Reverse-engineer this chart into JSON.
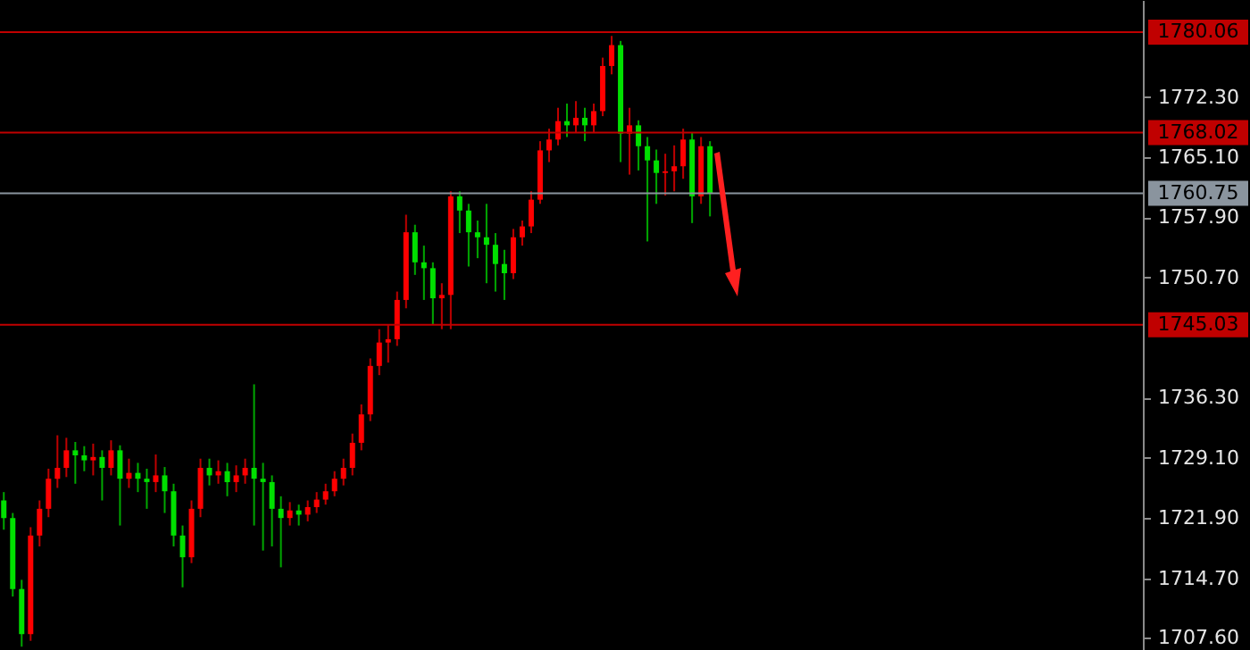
{
  "chart_data": {
    "type": "candlestick",
    "categories": [
      null,
      null,
      null,
      null,
      null,
      null,
      null,
      null,
      null,
      null,
      null,
      null,
      null,
      null,
      null,
      null,
      null,
      null,
      null,
      null,
      null,
      null,
      null,
      null,
      null,
      null,
      null,
      null,
      null,
      null,
      null,
      null,
      null,
      null,
      null,
      null,
      null,
      null,
      null,
      null,
      null,
      null,
      null,
      null,
      null,
      null,
      null,
      null,
      null,
      null,
      null,
      null,
      null,
      null,
      null,
      null,
      null,
      null,
      null,
      null,
      null,
      null,
      null,
      null,
      null,
      null,
      null,
      null,
      null,
      null,
      null,
      null,
      null,
      null,
      null,
      null,
      null,
      null,
      null,
      null,
      null,
      null,
      null,
      null,
      null,
      null,
      null,
      null,
      null,
      null,
      null,
      null,
      null,
      null,
      null,
      null,
      null,
      null,
      null,
      null,
      null,
      null,
      null,
      null,
      null,
      null,
      null,
      null,
      null,
      null,
      null,
      null,
      null,
      null,
      null,
      null,
      null,
      null,
      null,
      null,
      null,
      null,
      null,
      null,
      null,
      null,
      null,
      null
    ],
    "ohlc": [
      [
        1724.0,
        1725.0,
        1720.5,
        1721.9
      ],
      [
        1721.9,
        1722.5,
        1712.5,
        1713.4
      ],
      [
        1713.4,
        1714.5,
        1706.5,
        1708.0
      ],
      [
        1708.0,
        1720.8,
        1707.2,
        1719.8
      ],
      [
        1719.8,
        1724.0,
        1718.5,
        1723.0
      ],
      [
        1723.0,
        1727.8,
        1722.0,
        1726.6
      ],
      [
        1726.6,
        1731.8,
        1725.5,
        1727.9
      ],
      [
        1727.9,
        1731.5,
        1726.8,
        1730.0
      ],
      [
        1730.0,
        1731.0,
        1726.0,
        1729.4
      ],
      [
        1729.4,
        1730.5,
        1727.5,
        1728.8
      ],
      [
        1728.8,
        1730.8,
        1727.0,
        1729.2
      ],
      [
        1729.2,
        1730.0,
        1724.0,
        1727.9
      ],
      [
        1727.9,
        1731.2,
        1727.0,
        1730.0
      ],
      [
        1730.0,
        1730.6,
        1721.0,
        1726.6
      ],
      [
        1726.6,
        1729.0,
        1725.5,
        1727.3
      ],
      [
        1727.3,
        1728.5,
        1725.0,
        1726.6
      ],
      [
        1726.6,
        1727.8,
        1723.0,
        1726.2
      ],
      [
        1726.2,
        1729.5,
        1725.0,
        1727.0
      ],
      [
        1727.0,
        1728.0,
        1722.5,
        1725.1
      ],
      [
        1725.1,
        1726.0,
        1718.5,
        1719.8
      ],
      [
        1719.8,
        1721.0,
        1713.6,
        1717.2
      ],
      [
        1717.2,
        1724.0,
        1716.5,
        1723.0
      ],
      [
        1723.0,
        1729.0,
        1722.0,
        1727.9
      ],
      [
        1727.9,
        1729.0,
        1725.8,
        1727.0
      ],
      [
        1727.0,
        1728.8,
        1726.0,
        1727.5
      ],
      [
        1727.5,
        1728.5,
        1724.5,
        1726.2
      ],
      [
        1726.2,
        1728.2,
        1725.0,
        1727.0
      ],
      [
        1727.0,
        1729.0,
        1726.0,
        1727.9
      ],
      [
        1727.9,
        1737.9,
        1721.0,
        1726.6
      ],
      [
        1726.6,
        1728.5,
        1718.0,
        1726.2
      ],
      [
        1726.2,
        1727.0,
        1718.5,
        1723.0
      ],
      [
        1723.0,
        1724.5,
        1716.0,
        1721.9
      ],
      [
        1721.9,
        1723.8,
        1721.0,
        1722.8
      ],
      [
        1722.8,
        1723.5,
        1721.0,
        1722.3
      ],
      [
        1722.3,
        1724.0,
        1721.5,
        1723.2
      ],
      [
        1723.2,
        1725.0,
        1722.5,
        1724.1
      ],
      [
        1724.1,
        1726.0,
        1723.5,
        1725.1
      ],
      [
        1725.1,
        1727.5,
        1724.5,
        1726.6
      ],
      [
        1726.6,
        1729.0,
        1725.8,
        1727.9
      ],
      [
        1727.9,
        1732.0,
        1727.0,
        1730.9
      ],
      [
        1730.9,
        1735.5,
        1730.0,
        1734.3
      ],
      [
        1734.3,
        1741.0,
        1733.5,
        1740.1
      ],
      [
        1740.1,
        1744.5,
        1739.0,
        1742.9
      ],
      [
        1742.9,
        1745.0,
        1740.5,
        1743.3
      ],
      [
        1743.3,
        1749.0,
        1742.5,
        1748.0
      ],
      [
        1748.0,
        1758.2,
        1747.0,
        1756.1
      ],
      [
        1756.1,
        1757.0,
        1751.0,
        1752.5
      ],
      [
        1752.5,
        1754.5,
        1748.0,
        1751.8
      ],
      [
        1751.8,
        1752.5,
        1745.0,
        1748.2
      ],
      [
        1748.2,
        1750.0,
        1744.5,
        1748.6
      ],
      [
        1748.6,
        1761.0,
        1744.5,
        1760.4
      ],
      [
        1760.4,
        1761.0,
        1756.0,
        1758.7
      ],
      [
        1758.7,
        1759.5,
        1752.0,
        1756.1
      ],
      [
        1756.1,
        1757.5,
        1753.0,
        1755.5
      ],
      [
        1755.5,
        1759.5,
        1750.0,
        1754.6
      ],
      [
        1754.6,
        1756.0,
        1749.0,
        1752.3
      ],
      [
        1752.3,
        1754.0,
        1748.0,
        1751.2
      ],
      [
        1751.2,
        1756.5,
        1750.5,
        1755.5
      ],
      [
        1755.5,
        1757.5,
        1754.5,
        1756.8
      ],
      [
        1756.8,
        1761.0,
        1756.0,
        1760.0
      ],
      [
        1760.0,
        1767.0,
        1759.5,
        1765.9
      ],
      [
        1765.9,
        1768.5,
        1764.5,
        1767.2
      ],
      [
        1767.2,
        1771.0,
        1766.5,
        1769.4
      ],
      [
        1769.4,
        1771.5,
        1767.5,
        1768.9
      ],
      [
        1768.9,
        1771.8,
        1768.0,
        1769.8
      ],
      [
        1769.8,
        1771.0,
        1767.0,
        1768.9
      ],
      [
        1768.9,
        1771.5,
        1768.0,
        1770.6
      ],
      [
        1770.6,
        1777.0,
        1770.0,
        1776.0
      ],
      [
        1776.0,
        1779.6,
        1775.0,
        1778.5
      ],
      [
        1778.5,
        1779.0,
        1764.5,
        1767.9
      ],
      [
        1767.9,
        1771.0,
        1763.0,
        1768.9
      ],
      [
        1768.9,
        1769.5,
        1763.5,
        1766.4
      ],
      [
        1766.4,
        1767.5,
        1755.0,
        1764.7
      ],
      [
        1764.7,
        1766.0,
        1759.5,
        1763.2
      ],
      [
        1763.2,
        1765.5,
        1760.5,
        1763.4
      ],
      [
        1763.4,
        1766.5,
        1761.0,
        1764.0
      ],
      [
        1764.0,
        1768.5,
        1762.5,
        1767.2
      ],
      [
        1767.2,
        1768.0,
        1757.2,
        1760.4
      ],
      [
        1760.4,
        1767.5,
        1759.5,
        1766.4
      ],
      [
        1766.4,
        1767.0,
        1758.0,
        1760.75
      ],
      null,
      null,
      null,
      null,
      null,
      null,
      null,
      null,
      null,
      null,
      null,
      null,
      null,
      null,
      null,
      null,
      null,
      null,
      null,
      null,
      null,
      null,
      null,
      null,
      null,
      null,
      null,
      null,
      null,
      null,
      null,
      null,
      null,
      null,
      null,
      null,
      null,
      null,
      null,
      null,
      null,
      null,
      null,
      null,
      null,
      null,
      null,
      null
    ],
    "colors": [
      "#00e000",
      "#00e000",
      "#00e000",
      "#ff0000",
      "#ff0000",
      "#ff0000",
      "#ff0000",
      "#ff0000",
      "#00e000",
      "#00e000",
      "#ff0000",
      "#00e000",
      "#ff0000",
      "#00e000",
      "#ff0000",
      "#00e000",
      "#00e000",
      "#ff0000",
      "#00e000",
      "#00e000",
      "#00e000",
      "#ff0000",
      "#ff0000",
      "#00e000",
      "#ff0000",
      "#00e000",
      "#ff0000",
      "#ff0000",
      "#00e000",
      "#00e000",
      "#00e000",
      "#00e000",
      "#ff0000",
      "#00e000",
      "#ff0000",
      "#ff0000",
      "#ff0000",
      "#ff0000",
      "#ff0000",
      "#ff0000",
      "#ff0000",
      "#ff0000",
      "#ff0000",
      "#ff0000",
      "#ff0000",
      "#ff0000",
      "#00e000",
      "#00e000",
      "#00e000",
      "#ff0000",
      "#ff0000",
      "#00e000",
      "#00e000",
      "#00e000",
      "#00e000",
      "#00e000",
      "#00e000",
      "#ff0000",
      "#ff0000",
      "#ff0000",
      "#ff0000",
      "#ff0000",
      "#ff0000",
      "#00e000",
      "#ff0000",
      "#00e000",
      "#ff0000",
      "#ff0000",
      "#ff0000",
      "#00e000",
      "#ff0000",
      "#00e000",
      "#00e000",
      "#00e000",
      "#ff0000",
      "#ff0000",
      "#ff0000",
      "#00e000",
      "#ff0000",
      "#00e000",
      null,
      null,
      null,
      null,
      null,
      null,
      null,
      null,
      null,
      null,
      null,
      null,
      null,
      null,
      null,
      null,
      null,
      null,
      null,
      null,
      null,
      null,
      null,
      null,
      null,
      null,
      null,
      null,
      null,
      null,
      null,
      null,
      null,
      null,
      null,
      null,
      null,
      null,
      null,
      null,
      null,
      null,
      null,
      null,
      null,
      null,
      null,
      null
    ],
    "ylim": [
      1706.1,
      1783.9
    ],
    "yticks": [
      {
        "value": 1772.3,
        "label": "1772.30"
      },
      {
        "value": 1765.1,
        "label": "1765.10"
      },
      {
        "value": 1757.9,
        "label": "1757.90"
      },
      {
        "value": 1750.7,
        "label": "1750.70"
      },
      {
        "value": 1736.3,
        "label": "1736.30"
      },
      {
        "value": 1729.1,
        "label": "1729.10"
      },
      {
        "value": 1721.9,
        "label": "1721.90"
      },
      {
        "value": 1714.7,
        "label": "1714.70"
      },
      {
        "value": 1707.6,
        "label": "1707.60"
      }
    ],
    "ref_lines": [
      {
        "axis": "y",
        "value": 1780.06,
        "label": "1780.06",
        "color": "#c00000"
      },
      {
        "axis": "y",
        "value": 1768.02,
        "label": "1768.02",
        "color": "#c00000"
      },
      {
        "axis": "y",
        "value": 1760.75,
        "label": "1760.75",
        "color": "#8a949e"
      },
      {
        "axis": "y",
        "value": 1745.03,
        "label": "1745.03",
        "color": "#c00000"
      }
    ],
    "tick_labels": "y"
  }
}
